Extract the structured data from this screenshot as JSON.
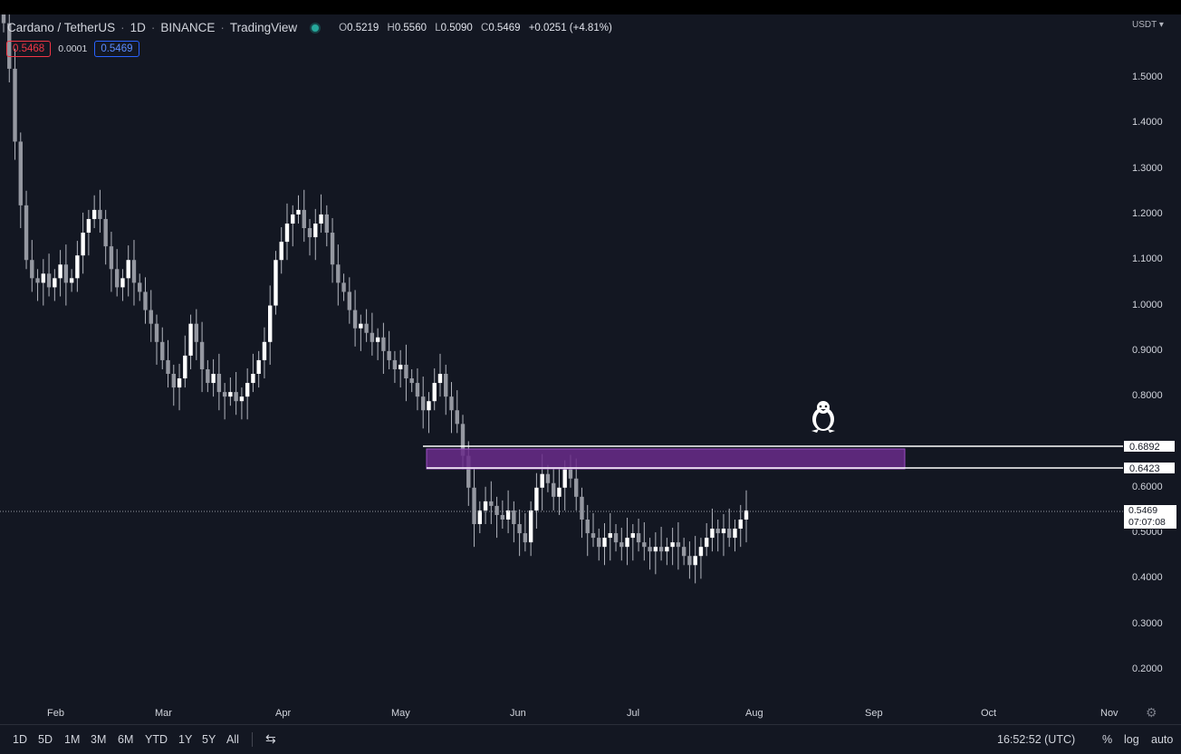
{
  "header": {
    "symbol": "Cardano / TetherUS",
    "interval": "1D",
    "exchange": "BINANCE",
    "source": "TradingView",
    "status_color": "#26a69a",
    "ohlc": {
      "o_label": "O",
      "o": "0.5219",
      "h_label": "H",
      "h": "0.5560",
      "l_label": "L",
      "l": "0.5090",
      "c_label": "C",
      "c": "0.5469",
      "change": "+0.0251 (+4.81%)"
    }
  },
  "quote": {
    "bid": "0.5468",
    "spread": "0.0001",
    "ask": "0.5469"
  },
  "axis": {
    "currency": "USDT",
    "y_ticks": [
      "1.5000",
      "1.4000",
      "1.3000",
      "1.2000",
      "1.1000",
      "1.0000",
      "0.9000",
      "0.8000",
      "0.6000",
      "0.5000",
      "0.4000",
      "0.3000",
      "0.2000"
    ],
    "x_ticks": [
      "Feb",
      "Mar",
      "Apr",
      "May",
      "Jun",
      "Jul",
      "Aug",
      "Sep",
      "Oct",
      "Nov"
    ]
  },
  "levels": {
    "upper": "0.6892",
    "lower": "0.6423",
    "zone_color": "#6a2c8a"
  },
  "current_price": {
    "value": "0.5469",
    "countdown": "07:07:08"
  },
  "watermark_icon": "penguin-icon",
  "bottom": {
    "timeframes": [
      "1D",
      "5D",
      "1M",
      "3M",
      "6M",
      "YTD",
      "1Y",
      "5Y",
      "All"
    ],
    "clock": "16:52:52 (UTC)",
    "percent": "%",
    "log": "log",
    "auto": "auto"
  },
  "chart_data": {
    "type": "candlestick",
    "x_ticks": [
      "Feb",
      "Mar",
      "Apr",
      "May",
      "Jun",
      "Jul",
      "Aug",
      "Sep",
      "Oct",
      "Nov"
    ],
    "ylim": [
      0.16,
      1.6
    ],
    "levels": [
      0.6892,
      0.6423
    ],
    "current": 0.5469,
    "series_close": [
      1.62,
      1.52,
      1.36,
      1.22,
      1.1,
      1.06,
      1.05,
      1.07,
      1.04,
      1.06,
      1.09,
      1.05,
      1.06,
      1.11,
      1.16,
      1.19,
      1.21,
      1.19,
      1.13,
      1.08,
      1.04,
      1.06,
      1.1,
      1.05,
      1.03,
      0.99,
      0.96,
      0.92,
      0.88,
      0.85,
      0.82,
      0.84,
      0.89,
      0.96,
      0.92,
      0.86,
      0.83,
      0.85,
      0.81,
      0.8,
      0.81,
      0.79,
      0.8,
      0.83,
      0.85,
      0.88,
      0.92,
      1.0,
      1.1,
      1.14,
      1.18,
      1.2,
      1.21,
      1.17,
      1.15,
      1.18,
      1.2,
      1.16,
      1.09,
      1.05,
      1.03,
      0.99,
      0.95,
      0.96,
      0.94,
      0.92,
      0.93,
      0.9,
      0.88,
      0.86,
      0.87,
      0.84,
      0.83,
      0.8,
      0.77,
      0.79,
      0.83,
      0.85,
      0.8,
      0.77,
      0.74,
      0.67,
      0.6,
      0.52,
      0.55,
      0.57,
      0.56,
      0.54,
      0.53,
      0.55,
      0.52,
      0.5,
      0.48,
      0.55,
      0.6,
      0.63,
      0.61,
      0.58,
      0.6,
      0.64,
      0.62,
      0.58,
      0.53,
      0.5,
      0.49,
      0.47,
      0.49,
      0.5,
      0.48,
      0.47,
      0.49,
      0.5,
      0.48,
      0.47,
      0.46,
      0.47,
      0.46,
      0.47,
      0.48,
      0.47,
      0.45,
      0.43,
      0.45,
      0.47,
      0.49,
      0.51,
      0.5,
      0.51,
      0.49,
      0.51,
      0.53,
      0.55
    ]
  }
}
